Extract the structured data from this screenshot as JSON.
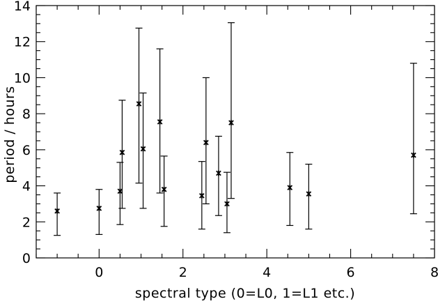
{
  "chart_data": {
    "type": "scatter",
    "title": "",
    "xlabel": "spectral type (0=L0, 1=L1 etc.)",
    "ylabel": "period / hours",
    "xlim": [
      -1.5,
      8
    ],
    "ylim": [
      0,
      14
    ],
    "xticks": [
      0,
      2,
      4,
      6,
      8
    ],
    "yticks": [
      0,
      2,
      4,
      6,
      8,
      10,
      12,
      14
    ],
    "xtick_labels": [
      "0",
      "2",
      "4",
      "6",
      "8"
    ],
    "ytick_labels": [
      "0",
      "2",
      "4",
      "6",
      "8",
      "10",
      "12",
      "14"
    ],
    "grid": false,
    "marker": "asterisk",
    "error_bars": "vertical",
    "points": [
      {
        "x": -1.0,
        "y": 2.6,
        "y_low": 1.25,
        "y_high": 3.6
      },
      {
        "x": 0.0,
        "y": 2.75,
        "y_low": 1.3,
        "y_high": 3.8
      },
      {
        "x": 0.5,
        "y": 3.7,
        "y_low": 1.85,
        "y_high": 5.3
      },
      {
        "x": 0.55,
        "y": 5.85,
        "y_low": 2.75,
        "y_high": 8.75
      },
      {
        "x": 0.95,
        "y": 8.55,
        "y_low": 4.15,
        "y_high": 12.75
      },
      {
        "x": 1.05,
        "y": 6.05,
        "y_low": 2.75,
        "y_high": 9.15
      },
      {
        "x": 1.45,
        "y": 7.55,
        "y_low": 3.6,
        "y_high": 11.6
      },
      {
        "x": 1.55,
        "y": 3.8,
        "y_low": 1.75,
        "y_high": 5.65
      },
      {
        "x": 2.45,
        "y": 3.45,
        "y_low": 1.6,
        "y_high": 5.35
      },
      {
        "x": 2.55,
        "y": 6.4,
        "y_low": 3.0,
        "y_high": 10.0
      },
      {
        "x": 2.85,
        "y": 4.7,
        "y_low": 2.35,
        "y_high": 6.75
      },
      {
        "x": 3.05,
        "y": 3.0,
        "y_low": 1.4,
        "y_high": 4.75
      },
      {
        "x": 3.15,
        "y": 7.5,
        "y_low": 3.3,
        "y_high": 13.05
      },
      {
        "x": 4.55,
        "y": 3.9,
        "y_low": 1.8,
        "y_high": 5.85
      },
      {
        "x": 5.0,
        "y": 3.55,
        "y_low": 1.6,
        "y_high": 5.2
      },
      {
        "x": 7.5,
        "y": 5.7,
        "y_low": 2.45,
        "y_high": 10.8
      }
    ]
  }
}
